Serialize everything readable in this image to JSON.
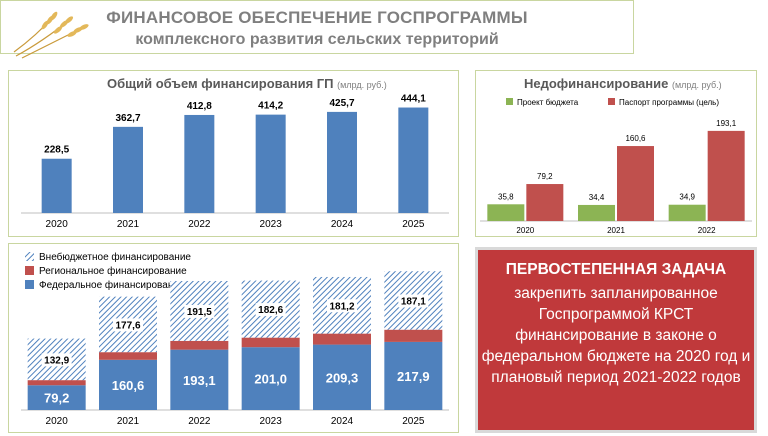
{
  "header": {
    "title_line1": "ФИНАНСОВОЕ ОБЕСПЕЧЕНИЕ ГОСПРОГРАММЫ",
    "title_line2": "комплексного развития сельских территорий"
  },
  "colors": {
    "blue": "#4f81bd",
    "red": "#c0504d",
    "green": "#8cb454",
    "hatch": "#4f81bd",
    "panel_border": "#c9d6a0"
  },
  "chart_data": [
    {
      "id": "total",
      "type": "bar",
      "title": "Общий объем финансирования ГП",
      "unit": "(млрд. руб.)",
      "categories": [
        "2020",
        "2021",
        "2022",
        "2023",
        "2024",
        "2025"
      ],
      "values": [
        228.5,
        362.7,
        412.8,
        414.2,
        425.7,
        444.1
      ],
      "value_labels": [
        "228,5",
        "362,7",
        "412,8",
        "414,2",
        "425,7",
        "444,1"
      ],
      "ylim": [
        0,
        480
      ]
    },
    {
      "id": "underfunding",
      "type": "bar",
      "title": "Недофинансирование",
      "unit": "(млрд. руб.)",
      "legend": "top",
      "categories": [
        "2020",
        "2021",
        "2022"
      ],
      "series": [
        {
          "name": "Проект бюджета",
          "values": [
            35.8,
            34.4,
            34.9
          ],
          "labels": [
            "35,8",
            "34,4",
            "34,9"
          ]
        },
        {
          "name": "Паспорт программы (цель)",
          "values": [
            79.2,
            160.6,
            193.1
          ],
          "labels": [
            "79,2",
            "160,6",
            "193,1"
          ]
        }
      ],
      "ylim": [
        0,
        210
      ]
    },
    {
      "id": "structure",
      "type": "bar",
      "stacked": true,
      "legend": "top-left",
      "categories": [
        "2020",
        "2021",
        "2022",
        "2023",
        "2024",
        "2025"
      ],
      "series": [
        {
          "name": "Федеральное финансирование",
          "values": [
            79.2,
            160.6,
            193.1,
            201.0,
            209.3,
            217.9
          ],
          "labels": [
            "79,2",
            "160,6",
            "193,1",
            "201,0",
            "209,3",
            "217,9"
          ]
        },
        {
          "name": "Региональное финансирование",
          "values": [
            16.4,
            24.5,
            28.2,
            30.6,
            35.2,
            39.1
          ]
        },
        {
          "name": "Внебюджетное финансирование",
          "values": [
            132.9,
            177.6,
            191.5,
            182.6,
            181.2,
            187.1
          ],
          "labels": [
            "132,9",
            "177,6",
            "191,5",
            "182,6",
            "181,2",
            "187,1"
          ]
        }
      ],
      "ylim": [
        0,
        480
      ]
    }
  ],
  "task": {
    "heading": "ПЕРВОСТЕПЕННАЯ ЗАДАЧА",
    "body": "закрепить запланированное Госпрограммой КРСТ финансирование в законе о федеральном бюджете на 2020 год и плановый период  2021-2022 годов"
  }
}
